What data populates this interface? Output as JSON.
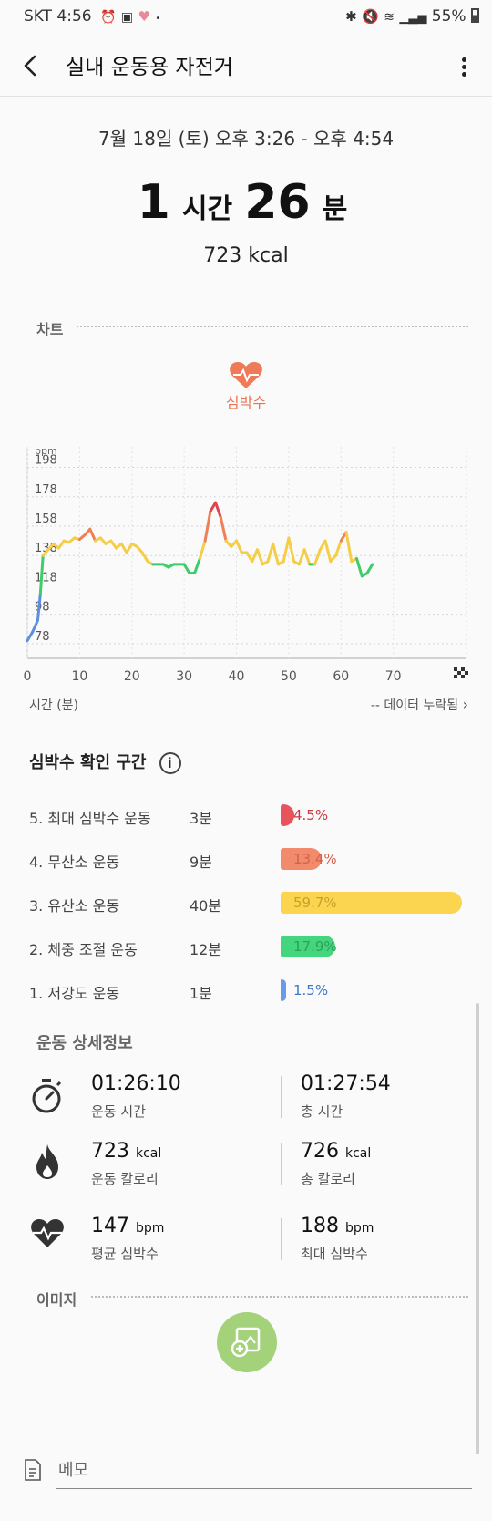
{
  "status_bar": {
    "carrier": "SKT",
    "time": "4:56",
    "battery": "55%",
    "icons": [
      "alarm-icon",
      "notification-icon",
      "heart-icon",
      "bluetooth-icon",
      "mute-icon",
      "wifi-icon",
      "signal-icon",
      "battery-icon"
    ]
  },
  "header": {
    "title": "실내 운동용 자전거"
  },
  "summary": {
    "date_range": "7월 18일 (토) 오후 3:26 - 오후 4:54",
    "hours": "1",
    "hours_unit": "시간",
    "minutes": "26",
    "minutes_unit": "분",
    "calories": "723 kcal"
  },
  "chart_section": {
    "header": "차트",
    "metric_label": "심박수",
    "x_axis_label": "시간 (분)",
    "missing_data_label": "-- 데이터 누락됨",
    "accent": "#e87455"
  },
  "chart_data": {
    "type": "line",
    "title": "",
    "ylabel": "bpm",
    "xlabel": "시간 (분)",
    "y_ticks": [
      78,
      98,
      118,
      138,
      158,
      178,
      198
    ],
    "x_ticks": [
      0,
      10,
      20,
      30,
      40,
      50,
      60,
      70
    ],
    "xlim": [
      0,
      84
    ],
    "ylim": [
      68,
      212
    ],
    "grid": true,
    "series": [
      {
        "x": [
          0,
          1,
          2,
          2.5,
          3,
          4,
          5,
          6,
          7,
          8,
          9,
          10,
          11,
          12,
          13,
          14,
          15,
          16,
          17,
          18,
          19,
          20,
          21,
          22,
          23,
          24,
          25,
          26,
          27,
          28,
          29,
          30,
          31,
          32,
          33,
          34,
          35,
          36,
          37,
          38,
          39,
          40,
          41,
          42,
          43,
          44,
          45,
          46,
          47,
          48,
          49,
          50,
          51,
          52,
          53,
          54,
          55,
          56,
          57,
          58,
          59,
          60,
          61,
          62,
          63,
          64,
          65,
          66
        ],
        "values": [
          80,
          86,
          94,
          112,
          138,
          142,
          146,
          143,
          148,
          147,
          150,
          149,
          152,
          156,
          148,
          150,
          146,
          148,
          143,
          146,
          140,
          146,
          144,
          140,
          134,
          132,
          132,
          132,
          130,
          132,
          132,
          132,
          126,
          126,
          136,
          148,
          168,
          174,
          164,
          148,
          144,
          148,
          140,
          140,
          134,
          142,
          132,
          134,
          146,
          132,
          134,
          150,
          134,
          132,
          142,
          132,
          132,
          142,
          148,
          134,
          138,
          148,
          154,
          134,
          136,
          124,
          126,
          132
        ]
      }
    ],
    "zone_colors": {
      "low": "#5b8fe0",
      "fat_burn": "#3fcc6b",
      "aerobic": "#f5cd47",
      "anaerobic": "#ee8058",
      "max": "#e0454f"
    }
  },
  "zones": {
    "header": "심박수 확인 구간",
    "items": [
      {
        "name": "5. 최대 심박수 운동",
        "time": "3분",
        "pct": "4.5%",
        "value": 4.5,
        "color": "#e8545c",
        "text_color": "#c83a44"
      },
      {
        "name": "4. 무산소 운동",
        "time": "9분",
        "pct": "13.4%",
        "value": 13.4,
        "color": "#f28a6c",
        "text_color": "#d5604a"
      },
      {
        "name": "3. 유산소 운동",
        "time": "40분",
        "pct": "59.7%",
        "value": 59.7,
        "color": "#fbd54f",
        "text_color": "#c9a02a"
      },
      {
        "name": "2. 체중 조절 운동",
        "time": "12분",
        "pct": "17.9%",
        "value": 17.9,
        "color": "#44d67d",
        "text_color": "#2ea05a"
      },
      {
        "name": "1. 저강도 운동",
        "time": "1분",
        "pct": "1.5%",
        "value": 1.5,
        "color": "#6b9be6",
        "text_color": "#3f77cc"
      }
    ]
  },
  "details": {
    "header": "운동 상세정보",
    "workout_time": "01:26:10",
    "workout_time_label": "운동 시간",
    "total_time": "01:27:54",
    "total_time_label": "총 시간",
    "workout_calories": "723",
    "workout_calories_label": "운동 칼로리",
    "total_calories": "726",
    "total_calories_label": "총 칼로리",
    "kcal_unit": "kcal",
    "avg_hr": "147",
    "avg_hr_label": "평균 심박수",
    "max_hr": "188",
    "max_hr_label": "최대 심박수",
    "bpm_unit": "bpm"
  },
  "images": {
    "header": "이미지"
  },
  "memo": {
    "placeholder": "메모"
  }
}
